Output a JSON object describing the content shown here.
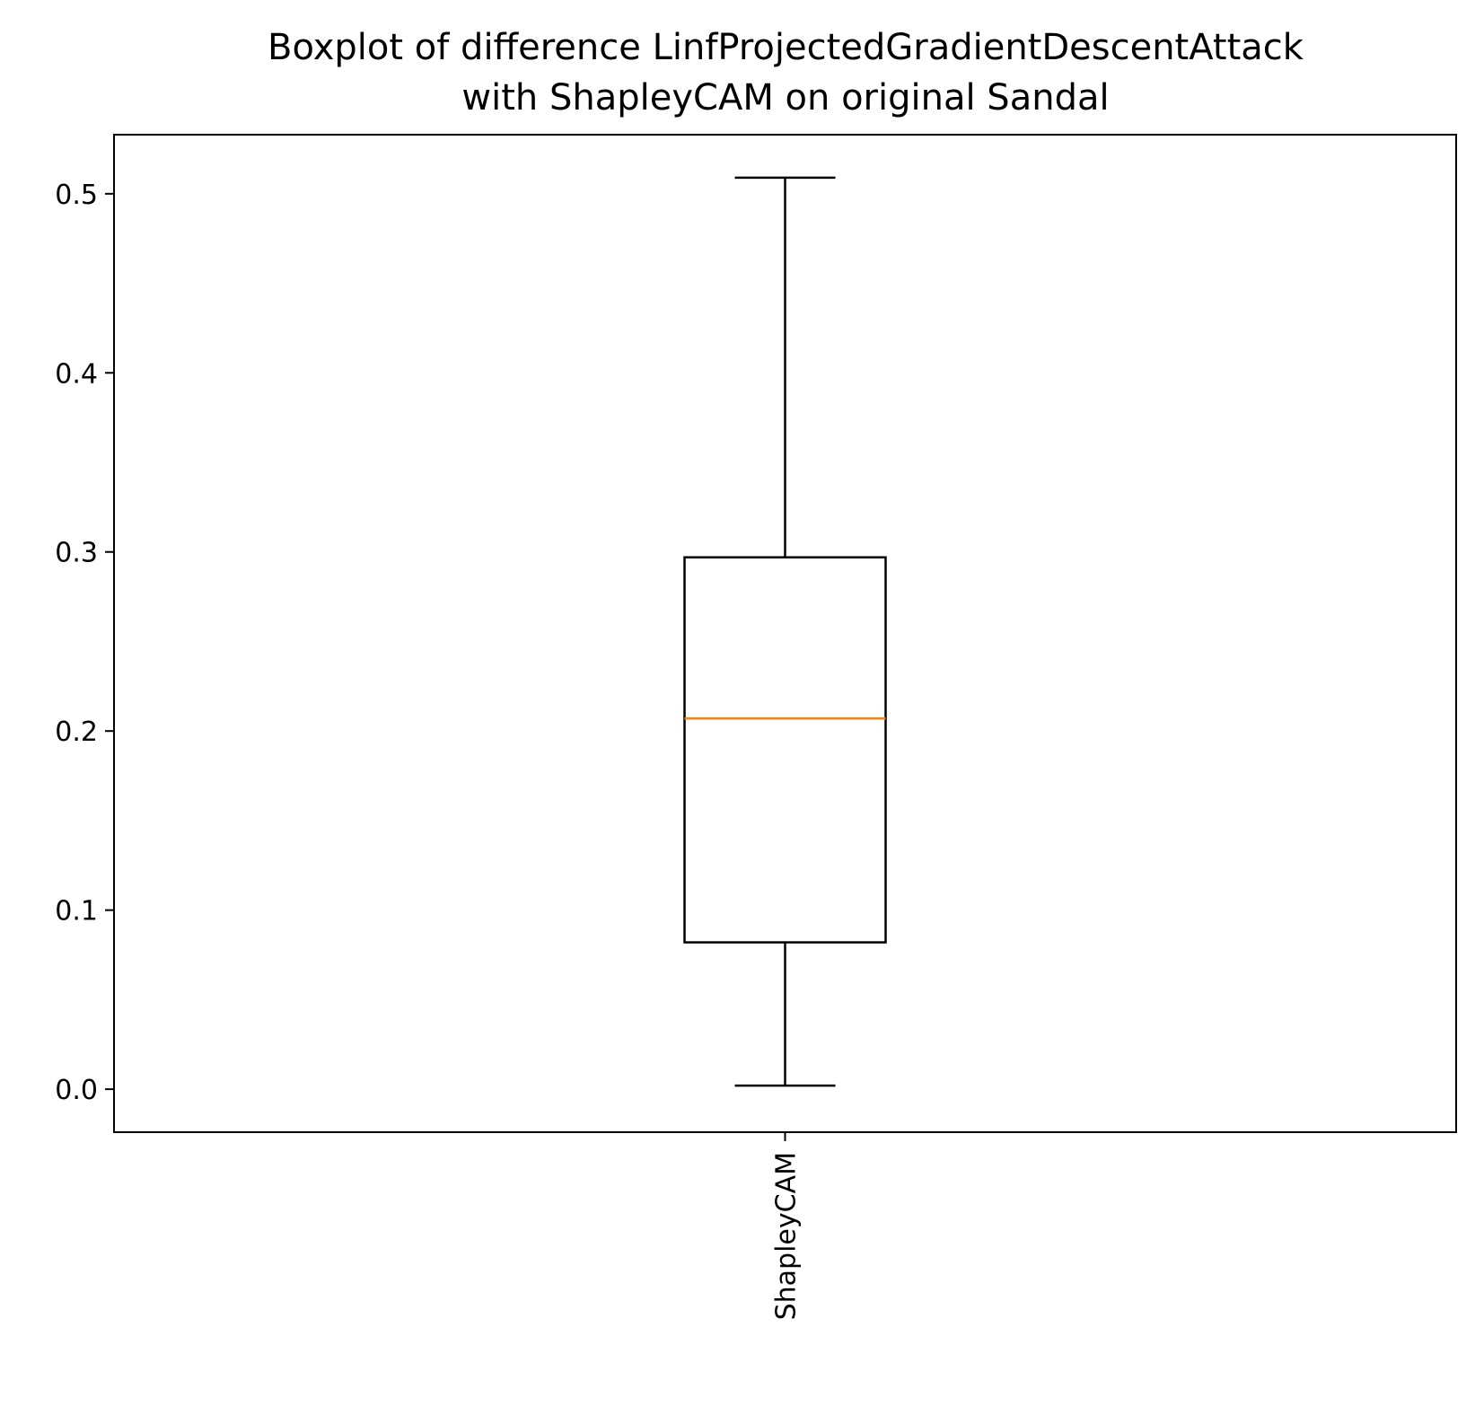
{
  "chart_data": {
    "type": "boxplot",
    "title": "Boxplot of difference LinfProjectedGradientDescentAttack\nwith ShapleyCAM on original Sandal",
    "title_lines": [
      "Boxplot of difference LinfProjectedGradientDescentAttack",
      "with ShapleyCAM on original Sandal"
    ],
    "xlabel": "",
    "ylabel": "",
    "ylim": [
      -0.024,
      0.533
    ],
    "yticks": [
      0.0,
      0.1,
      0.2,
      0.3,
      0.4,
      0.5
    ],
    "ytick_labels": [
      "0.0",
      "0.1",
      "0.2",
      "0.3",
      "0.4",
      "0.5"
    ],
    "categories": [
      "ShapleyCAM"
    ],
    "x_tick_rotation": "vertical",
    "grid": false,
    "boxes": [
      {
        "category": "ShapleyCAM",
        "whisker_low": 0.002,
        "q1": 0.082,
        "median": 0.207,
        "q3": 0.297,
        "whisker_high": 0.509
      }
    ],
    "colors": {
      "box": "#000000",
      "median": "#ff7f0e",
      "frame": "#000000"
    }
  }
}
